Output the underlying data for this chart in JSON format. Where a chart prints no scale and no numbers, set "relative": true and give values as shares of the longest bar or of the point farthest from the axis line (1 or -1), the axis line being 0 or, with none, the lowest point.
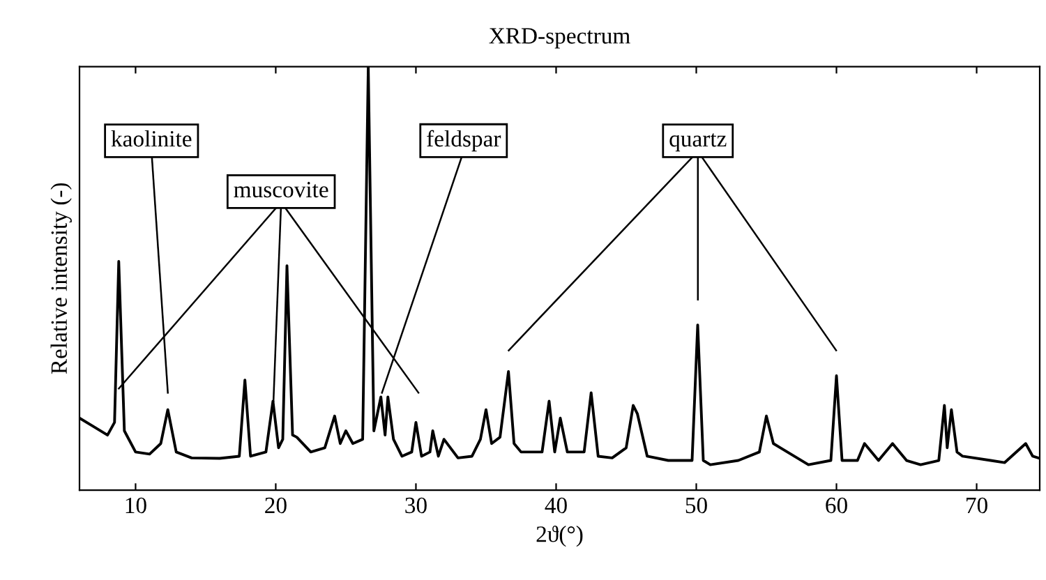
{
  "chart_data": {
    "type": "line",
    "title": "XRD-spectrum",
    "xlabel": "2ϑ(°)",
    "ylabel": "Relative intensity (-)",
    "relative": true,
    "xlim": [
      6,
      74.5
    ],
    "xticks": [
      10,
      20,
      30,
      40,
      50,
      60,
      70
    ],
    "grid": false,
    "legend": false,
    "series": [
      {
        "color": "#000000",
        "x": [
          6,
          7,
          8,
          8.5,
          8.8,
          9.2,
          10,
          11,
          11.8,
          12.3,
          12.9,
          14,
          16,
          17.4,
          17.8,
          18.2,
          19.3,
          19.8,
          20.2,
          20.5,
          20.8,
          21.2,
          21.5,
          22.5,
          23.5,
          24.2,
          24.6,
          25,
          25.5,
          26.2,
          26.6,
          27.0,
          27.5,
          27.8,
          28.0,
          28.4,
          29,
          29.7,
          30,
          30.4,
          31,
          31.2,
          31.6,
          32,
          33,
          34,
          34.6,
          35,
          35.4,
          36,
          36.6,
          37,
          37.5,
          39,
          39.5,
          39.9,
          40.3,
          40.8,
          42,
          42.5,
          43,
          44,
          45,
          45.5,
          45.8,
          46.5,
          48,
          49.7,
          50.1,
          50.5,
          51,
          53,
          54.5,
          55,
          55.5,
          56,
          58,
          59.6,
          60,
          60.4,
          61.5,
          62,
          63,
          64,
          65,
          66,
          67.3,
          67.7,
          67.9,
          68.2,
          68.6,
          69,
          71,
          72,
          73.5,
          74,
          74.5
        ],
        "values": [
          0.17,
          0.15,
          0.13,
          0.16,
          0.54,
          0.14,
          0.09,
          0.085,
          0.11,
          0.19,
          0.09,
          0.076,
          0.075,
          0.08,
          0.26,
          0.08,
          0.09,
          0.21,
          0.1,
          0.12,
          0.53,
          0.13,
          0.125,
          0.09,
          0.1,
          0.175,
          0.11,
          0.14,
          0.11,
          0.12,
          1.0,
          0.14,
          0.22,
          0.13,
          0.22,
          0.12,
          0.08,
          0.09,
          0.16,
          0.08,
          0.09,
          0.14,
          0.08,
          0.12,
          0.076,
          0.08,
          0.12,
          0.19,
          0.11,
          0.125,
          0.28,
          0.11,
          0.09,
          0.09,
          0.21,
          0.09,
          0.17,
          0.09,
          0.09,
          0.23,
          0.08,
          0.076,
          0.1,
          0.2,
          0.18,
          0.08,
          0.07,
          0.07,
          0.39,
          0.07,
          0.06,
          0.07,
          0.09,
          0.175,
          0.11,
          0.1,
          0.06,
          0.07,
          0.27,
          0.07,
          0.07,
          0.11,
          0.07,
          0.11,
          0.07,
          0.06,
          0.07,
          0.2,
          0.1,
          0.19,
          0.09,
          0.08,
          0.07,
          0.065,
          0.11,
          0.08,
          0.075
        ]
      }
    ],
    "annotations": [
      "kaolinite",
      "muscovite",
      "feldspar",
      "quartz"
    ]
  }
}
